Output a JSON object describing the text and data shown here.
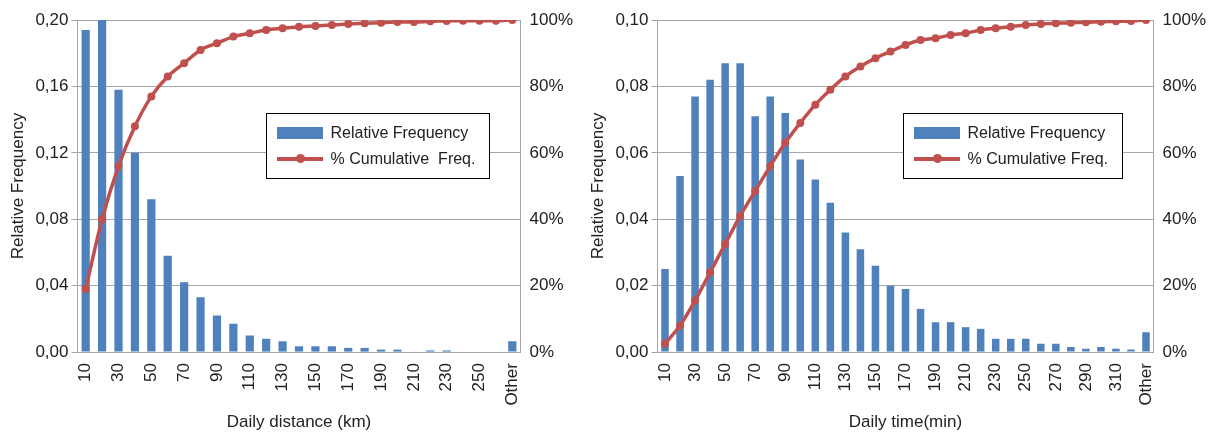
{
  "chart_data": [
    {
      "type": "bar",
      "xlabel": "Daily distance (km)",
      "ylabel": "Relative Frequency",
      "categories": [
        "10",
        null,
        "30",
        null,
        "50",
        null,
        "70",
        null,
        "90",
        null,
        "110",
        null,
        "130",
        null,
        "150",
        null,
        "170",
        null,
        "190",
        null,
        "210",
        null,
        "230",
        null,
        "250",
        null,
        "Other"
      ],
      "series": [
        {
          "name": "Relative Frequency",
          "color": "#4f81bd",
          "values": [
            0.194,
            0.2,
            0.158,
            0.12,
            0.092,
            0.058,
            0.042,
            0.033,
            0.022,
            0.017,
            0.01,
            0.008,
            0.0065,
            0.0035,
            0.0035,
            0.0035,
            0.0025,
            0.0025,
            0.0015,
            0.0015,
            0,
            0.001,
            0.001,
            0,
            0,
            0,
            0.0065
          ]
        },
        {
          "name": "% Cumulative  Freq.",
          "type": "line",
          "axis": "y2",
          "color": "#c0504d",
          "values": [
            19,
            40,
            56,
            68,
            77,
            83,
            87,
            91,
            93,
            95,
            96,
            97,
            97.5,
            98,
            98.2,
            98.5,
            98.8,
            99,
            99.2,
            99.4,
            99.4,
            99.6,
            99.7,
            99.8,
            99.8,
            99.8,
            100
          ]
        }
      ],
      "ylim": [
        0,
        0.2
      ],
      "yticks": [
        {
          "value": 0,
          "label": "0,00"
        },
        {
          "value": 0.04,
          "label": "0,04"
        },
        {
          "value": 0.08,
          "label": "0,08"
        },
        {
          "value": 0.12,
          "label": "0,12"
        },
        {
          "value": 0.16,
          "label": "0,16"
        },
        {
          "value": 0.2,
          "label": "0,20"
        }
      ],
      "y2lim": [
        0,
        100
      ],
      "y2ticks": [
        {
          "value": 0,
          "label": "0%"
        },
        {
          "value": 20,
          "label": "20%"
        },
        {
          "value": 40,
          "label": "40%"
        },
        {
          "value": 60,
          "label": "60%"
        },
        {
          "value": 80,
          "label": "80%"
        },
        {
          "value": 100,
          "label": "100%"
        }
      ],
      "grid": "y",
      "legend": "right",
      "marker": "circle",
      "line_style": "solid"
    },
    {
      "type": "bar",
      "xlabel": "Daily time(min)",
      "ylabel": "Relative Frequency",
      "categories": [
        "10",
        null,
        "30",
        null,
        "50",
        null,
        "70",
        null,
        "90",
        null,
        "110",
        null,
        "130",
        null,
        "150",
        null,
        "170",
        null,
        "190",
        null,
        "210",
        null,
        "230",
        null,
        "250",
        null,
        "270",
        null,
        "290",
        null,
        "310",
        null,
        "Other"
      ],
      "series": [
        {
          "name": "Relative Frequency",
          "color": "#4f81bd",
          "values": [
            0.025,
            0.053,
            0.077,
            0.082,
            0.087,
            0.087,
            0.071,
            0.077,
            0.072,
            0.058,
            0.052,
            0.045,
            0.036,
            0.031,
            0.026,
            0.02,
            0.019,
            0.013,
            0.009,
            0.009,
            0.0075,
            0.007,
            0.004,
            0.004,
            0.004,
            0.0025,
            0.0025,
            0.0015,
            0.001,
            0.0015,
            0.001,
            0.0008,
            0.006
          ]
        },
        {
          "name": "% Cumulative Freq.",
          "type": "line",
          "axis": "y2",
          "color": "#c0504d",
          "values": [
            2.5,
            8,
            15.5,
            24,
            32.5,
            41,
            48.5,
            56,
            63,
            69,
            74.5,
            79,
            83,
            86,
            88.5,
            90.5,
            92.5,
            94,
            94.5,
            95.5,
            96,
            97,
            97.5,
            98,
            98.5,
            98.8,
            99,
            99.2,
            99.3,
            99.5,
            99.6,
            99.7,
            100
          ]
        }
      ],
      "ylim": [
        0,
        0.1
      ],
      "yticks": [
        {
          "value": 0,
          "label": "0,00"
        },
        {
          "value": 0.02,
          "label": "0,02"
        },
        {
          "value": 0.04,
          "label": "0,04"
        },
        {
          "value": 0.06,
          "label": "0,06"
        },
        {
          "value": 0.08,
          "label": "0,08"
        },
        {
          "value": 0.1,
          "label": "0,10"
        }
      ],
      "y2lim": [
        0,
        100
      ],
      "y2ticks": [
        {
          "value": 0,
          "label": "0%"
        },
        {
          "value": 20,
          "label": "20%"
        },
        {
          "value": 40,
          "label": "40%"
        },
        {
          "value": 60,
          "label": "60%"
        },
        {
          "value": 80,
          "label": "80%"
        },
        {
          "value": 100,
          "label": "100%"
        }
      ],
      "grid": "y",
      "legend": "right",
      "marker": "circle",
      "line_style": "solid"
    }
  ]
}
